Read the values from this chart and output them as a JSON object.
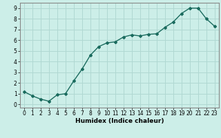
{
  "x": [
    0,
    1,
    2,
    3,
    4,
    5,
    6,
    7,
    8,
    9,
    10,
    11,
    12,
    13,
    14,
    15,
    16,
    17,
    18,
    19,
    20,
    21,
    22,
    23
  ],
  "y": [
    1.2,
    0.8,
    0.5,
    0.3,
    0.9,
    1.0,
    2.2,
    3.3,
    4.6,
    5.4,
    5.75,
    5.85,
    6.3,
    6.5,
    6.4,
    6.55,
    6.6,
    7.2,
    7.7,
    8.5,
    9.0,
    9.0,
    8.0,
    7.3
  ],
  "xlabel": "Humidex (Indice chaleur)",
  "xlim": [
    -0.5,
    23.5
  ],
  "ylim": [
    -0.3,
    9.5
  ],
  "yticks": [
    0,
    1,
    2,
    3,
    4,
    5,
    6,
    7,
    8,
    9
  ],
  "xticks": [
    0,
    1,
    2,
    3,
    4,
    5,
    6,
    7,
    8,
    9,
    10,
    11,
    12,
    13,
    14,
    15,
    16,
    17,
    18,
    19,
    20,
    21,
    22,
    23
  ],
  "line_color": "#1a6b5e",
  "marker": "D",
  "marker_size": 2.0,
  "line_width": 1.0,
  "bg_color": "#cceee8",
  "grid_color": "#b0d8d2",
  "axis_color": "#888888",
  "xlabel_fontsize": 6.5,
  "tick_fontsize": 5.5
}
